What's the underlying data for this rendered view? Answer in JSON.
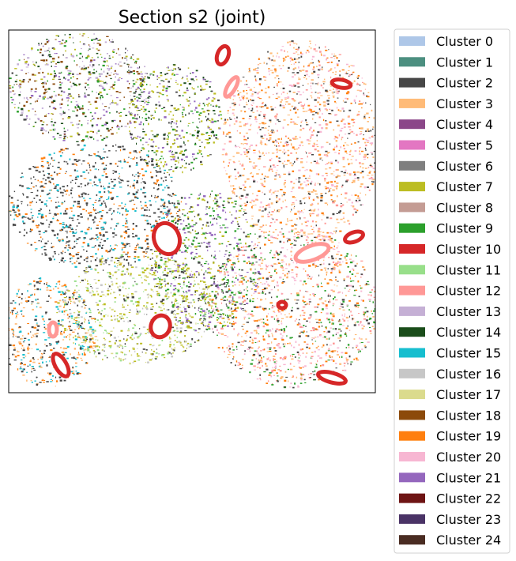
{
  "chart_data": {
    "type": "scatter",
    "title": "Section s2 (joint)",
    "xlabel": "",
    "ylabel": "",
    "grid": false,
    "axis_ticks": false,
    "legend_placement": "outside-right",
    "legend": [
      {
        "name": "Cluster 0",
        "color": "#aec7e8"
      },
      {
        "name": "Cluster 1",
        "color": "#4c8f80"
      },
      {
        "name": "Cluster 2",
        "color": "#474747"
      },
      {
        "name": "Cluster 3",
        "color": "#ffbb78"
      },
      {
        "name": "Cluster 4",
        "color": "#8b4789"
      },
      {
        "name": "Cluster 5",
        "color": "#e377c2"
      },
      {
        "name": "Cluster 6",
        "color": "#7f7f7f"
      },
      {
        "name": "Cluster 7",
        "color": "#bcbd22"
      },
      {
        "name": "Cluster 8",
        "color": "#c49c94"
      },
      {
        "name": "Cluster 9",
        "color": "#2ca02c"
      },
      {
        "name": "Cluster 10",
        "color": "#d62728"
      },
      {
        "name": "Cluster 11",
        "color": "#98df8a"
      },
      {
        "name": "Cluster 12",
        "color": "#ff9896"
      },
      {
        "name": "Cluster 13",
        "color": "#c5b0d5"
      },
      {
        "name": "Cluster 14",
        "color": "#1a4d1a"
      },
      {
        "name": "Cluster 15",
        "color": "#17becf"
      },
      {
        "name": "Cluster 16",
        "color": "#c7c7c7"
      },
      {
        "name": "Cluster 17",
        "color": "#dbdb8d"
      },
      {
        "name": "Cluster 18",
        "color": "#8c4a0a"
      },
      {
        "name": "Cluster 19",
        "color": "#ff7f0e"
      },
      {
        "name": "Cluster 20",
        "color": "#f7b6d2"
      },
      {
        "name": "Cluster 21",
        "color": "#9467bd"
      },
      {
        "name": "Cluster 22",
        "color": "#6e1414"
      },
      {
        "name": "Cluster 23",
        "color": "#4a3366"
      },
      {
        "name": "Cluster 24",
        "color": "#4a2c22"
      }
    ]
  }
}
